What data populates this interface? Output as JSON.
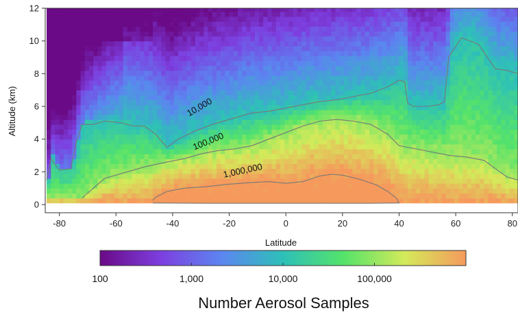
{
  "chart_data": {
    "type": "heatmap",
    "title": "",
    "xlabel": "Latitude",
    "ylabel": "Altitude (km)",
    "xlim": [
      -85,
      82
    ],
    "ylim": [
      -0.5,
      12
    ],
    "x_ticks": [
      "-80",
      "-60",
      "-40",
      "-20",
      "0",
      "20",
      "40",
      "60",
      "80"
    ],
    "x_tick_values": [
      -80,
      -60,
      -40,
      -20,
      0,
      20,
      40,
      60,
      80
    ],
    "y_ticks": [
      "0",
      "2",
      "4",
      "6",
      "8",
      "10",
      "12"
    ],
    "y_tick_values": [
      0,
      2,
      4,
      6,
      8,
      10,
      12
    ],
    "color_scale": "log",
    "colorbar": {
      "title": "Number Aerosol Samples",
      "range": [
        100,
        1000000
      ],
      "tick_labels": [
        "100",
        "1,000",
        "10,000",
        "100,000"
      ],
      "tick_values": [
        100,
        1000,
        10000,
        100000
      ],
      "colors": [
        "#6a0a86",
        "#7d3fe0",
        "#5b86f0",
        "#2ec0b8",
        "#55e36a",
        "#d4ea5a",
        "#f59a5c"
      ]
    },
    "contours": [
      {
        "label": "10,000",
        "label_position": [
          -30,
          5.8
        ],
        "label_angle_deg": -30,
        "path": [
          [
            -84.5,
            1.5
          ],
          [
            -83,
            2.8
          ],
          [
            -80,
            2.1
          ],
          [
            -76,
            2.2
          ],
          [
            -74,
            3.8
          ],
          [
            -72,
            4.9
          ],
          [
            -68,
            4.9
          ],
          [
            -64,
            5.1
          ],
          [
            -58,
            5.0
          ],
          [
            -54,
            4.8
          ],
          [
            -50,
            4.8
          ],
          [
            -46,
            4.3
          ],
          [
            -42,
            3.5
          ],
          [
            -38,
            4.0
          ],
          [
            -32,
            4.5
          ],
          [
            -26,
            4.9
          ],
          [
            -18,
            5.3
          ],
          [
            -12,
            5.6
          ],
          [
            -6,
            5.7
          ],
          [
            0,
            5.9
          ],
          [
            6,
            6.1
          ],
          [
            12,
            6.3
          ],
          [
            18,
            6.4
          ],
          [
            24,
            6.6
          ],
          [
            30,
            6.8
          ],
          [
            36,
            7.2
          ],
          [
            40,
            7.6
          ],
          [
            42,
            7.5
          ],
          [
            43,
            6.2
          ],
          [
            45,
            6.0
          ],
          [
            50,
            6.0
          ],
          [
            54,
            6.1
          ],
          [
            56,
            6.3
          ],
          [
            57.5,
            9.0
          ],
          [
            62,
            10.2
          ],
          [
            68,
            9.8
          ],
          [
            74,
            8.3
          ],
          [
            78,
            8.2
          ],
          [
            82,
            8.0
          ]
        ]
      },
      {
        "label": "100,000",
        "label_position": [
          -27,
          3.7
        ],
        "label_angle_deg": -22,
        "path": [
          [
            -72,
            0.4
          ],
          [
            -68,
            1.0
          ],
          [
            -64,
            1.6
          ],
          [
            -58,
            1.9
          ],
          [
            -50,
            2.3
          ],
          [
            -42,
            2.6
          ],
          [
            -36,
            2.8
          ],
          [
            -30,
            3.1
          ],
          [
            -24,
            3.3
          ],
          [
            -18,
            3.4
          ],
          [
            -12,
            3.6
          ],
          [
            -6,
            4.0
          ],
          [
            0,
            4.4
          ],
          [
            6,
            4.8
          ],
          [
            12,
            5.1
          ],
          [
            18,
            5.2
          ],
          [
            24,
            5.1
          ],
          [
            30,
            4.9
          ],
          [
            36,
            4.3
          ],
          [
            40,
            3.6
          ],
          [
            46,
            3.4
          ],
          [
            52,
            3.2
          ],
          [
            58,
            3.0
          ],
          [
            64,
            2.9
          ],
          [
            70,
            2.7
          ],
          [
            74,
            2.2
          ],
          [
            78,
            1.7
          ],
          [
            82,
            1.5
          ]
        ]
      },
      {
        "label": "1,000,000",
        "label_position": [
          -15,
          1.9
        ],
        "label_angle_deg": -12,
        "path": [
          [
            -47,
            0.25
          ],
          [
            -46,
            0.45
          ],
          [
            -42,
            0.8
          ],
          [
            -36,
            1.0
          ],
          [
            -28,
            1.1
          ],
          [
            -20,
            1.25
          ],
          [
            -12,
            1.35
          ],
          [
            -6,
            1.4
          ],
          [
            0,
            1.3
          ],
          [
            6,
            1.4
          ],
          [
            12,
            1.75
          ],
          [
            16,
            1.85
          ],
          [
            20,
            1.8
          ],
          [
            26,
            1.55
          ],
          [
            32,
            1.2
          ],
          [
            36,
            0.8
          ],
          [
            39,
            0.4
          ],
          [
            40,
            0.1
          ],
          [
            30,
            0.08
          ],
          [
            10,
            0.08
          ],
          [
            -10,
            0.08
          ],
          [
            -30,
            0.08
          ],
          [
            -47,
            0.1
          ]
        ]
      }
    ]
  }
}
